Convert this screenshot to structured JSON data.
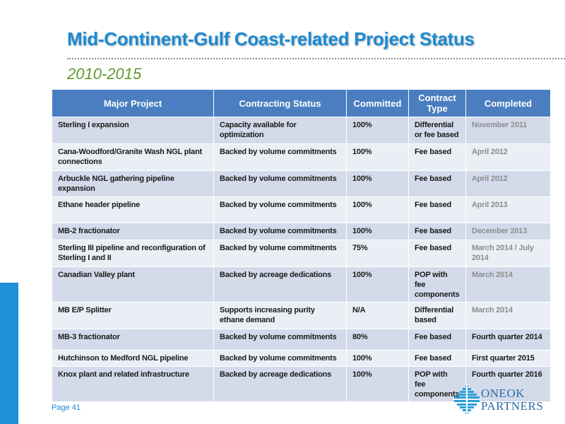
{
  "title": "Mid-Continent-Gulf Coast-related Project Status",
  "subtitle": "2010-2015",
  "table": {
    "headers": [
      "Major Project",
      "Contracting Status",
      "Committed",
      "Contract Type",
      "Completed"
    ],
    "rows": [
      {
        "project": "Sterling I expansion",
        "status": "Capacity available for optimization",
        "committed": "100%",
        "type": "Differential or fee based",
        "completed": "November 2011"
      },
      {
        "project": "Cana-Woodford/Granite Wash NGL plant connections",
        "status": "Backed by volume commitments",
        "committed": "100%",
        "type": "Fee based",
        "completed": "April 2012"
      },
      {
        "project": "Arbuckle NGL gathering pipeline expansion",
        "status": "Backed by volume commitments",
        "committed": "100%",
        "type": "Fee based",
        "completed": "April 2012"
      },
      {
        "project": "Ethane header pipeline",
        "status": "Backed by volume commitments",
        "committed": "100%",
        "type": "Fee based",
        "completed": "April 2013"
      },
      {
        "project": "MB-2 fractionator",
        "status": "Backed by volume commitments",
        "committed": "100%",
        "type": "Fee based",
        "completed": "December 2013"
      },
      {
        "project": "Sterling III pipeline and reconfiguration of Sterling I and II",
        "status": "Backed by volume commitments",
        "committed": "75%",
        "type": "Fee based",
        "completed": "March 2014 / July 2014"
      },
      {
        "project": "Canadian Valley plant",
        "status": "Backed by acreage dedications",
        "committed": "100%",
        "type": "POP with fee components",
        "completed": "March 2014"
      },
      {
        "project": "MB E/P Splitter",
        "status": "Supports increasing purity ethane demand",
        "committed": "N/A",
        "type": "Differential based",
        "completed": "March 2014"
      },
      {
        "project": "MB-3 fractionator",
        "status": "Backed by volume commitments",
        "committed": "80%",
        "type": "Fee based",
        "completed": "Fourth quarter 2014"
      },
      {
        "project": "Hutchinson to Medford NGL pipeline",
        "status": "Backed by volume commitments",
        "committed": "100%",
        "type": "Fee based",
        "completed": "First quarter 2015"
      },
      {
        "project": "Knox plant  and related infrastructure",
        "status": "Backed by acreage dedications",
        "committed": "100%",
        "type": "POP with fee components",
        "completed": "Fourth quarter 2016"
      }
    ]
  },
  "footer": {
    "page": "Page 41",
    "logo_line1": "ONEOK",
    "logo_line2": "PARTNERS",
    "logo_icon": "oneok-logo-icon"
  },
  "colors": {
    "title": "#1a8ad4",
    "subtitle": "#5d9b2d",
    "header_bg": "#4b7ec0",
    "row_dark": "#d3dbea",
    "row_light": "#eaeef5",
    "left_bar": "#1f8fd8"
  }
}
